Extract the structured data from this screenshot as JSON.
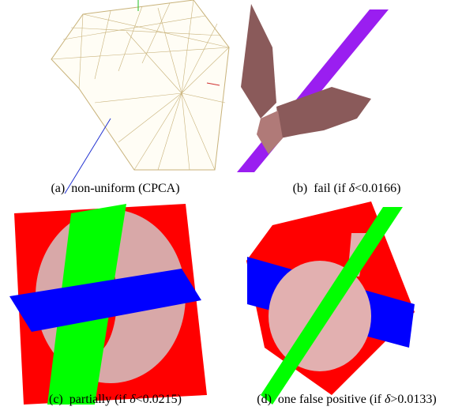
{
  "panels": [
    {
      "label": "(a)",
      "caption": [
        {
          "text": "non-uniform (CPCA)"
        }
      ]
    },
    {
      "label": "(b)",
      "caption": [
        {
          "text": "fail (if "
        },
        {
          "text": "δ",
          "italic": true
        },
        {
          "text": "<0.0166)"
        }
      ]
    },
    {
      "label": "(c)",
      "caption": [
        {
          "text": "partially (if "
        },
        {
          "text": "δ",
          "italic": true
        },
        {
          "text": "<0.0215)"
        }
      ]
    },
    {
      "label": "(d)",
      "caption": [
        {
          "text": "one false positive (if "
        },
        {
          "text": "δ",
          "italic": true
        },
        {
          "text": ">0.0133)"
        }
      ]
    }
  ]
}
